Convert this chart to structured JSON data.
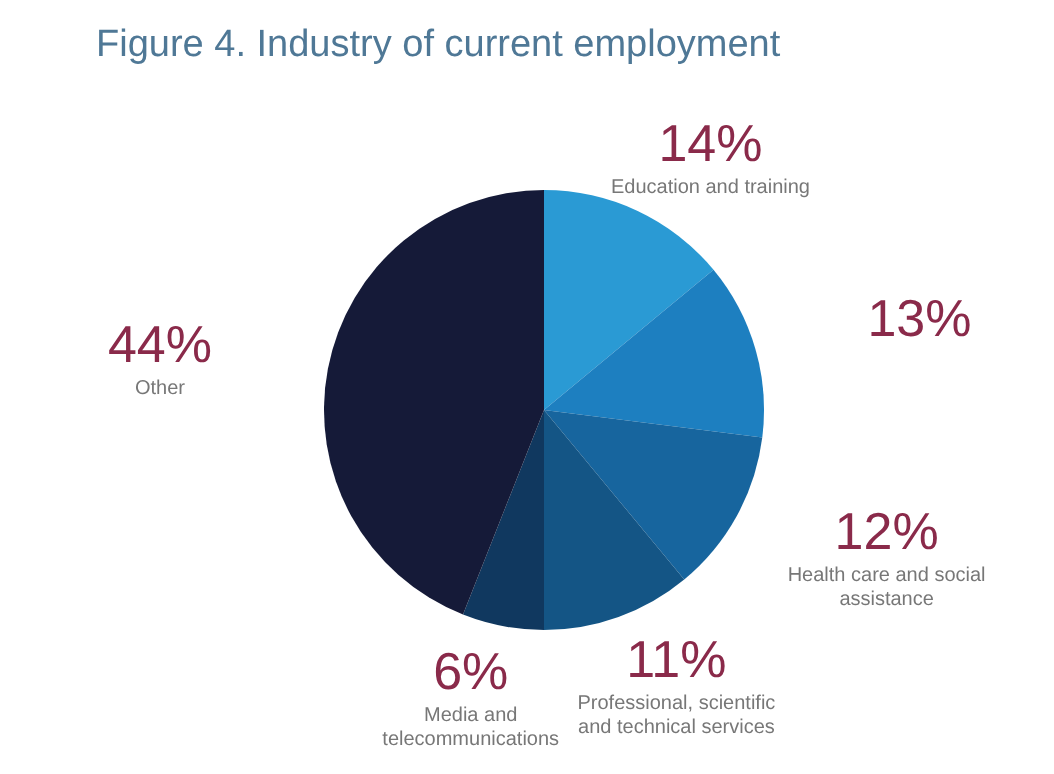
{
  "chart_data": {
    "type": "pie",
    "title": "Figure 4. Industry of current employment",
    "categories": [
      "Education and training",
      null,
      "Health care and social assistance",
      "Professional, scientific and technical services",
      "Media and telecommunications",
      "Other"
    ],
    "values": [
      14,
      13,
      12,
      11,
      6,
      44
    ],
    "value_labels": [
      "14%",
      "13%",
      "12%",
      "11%",
      "6%",
      "44%"
    ],
    "colors": [
      "#2a9ad4",
      "#1d7fc0",
      "#17659e",
      "#145585",
      "#10385f",
      "#151a38"
    ]
  }
}
